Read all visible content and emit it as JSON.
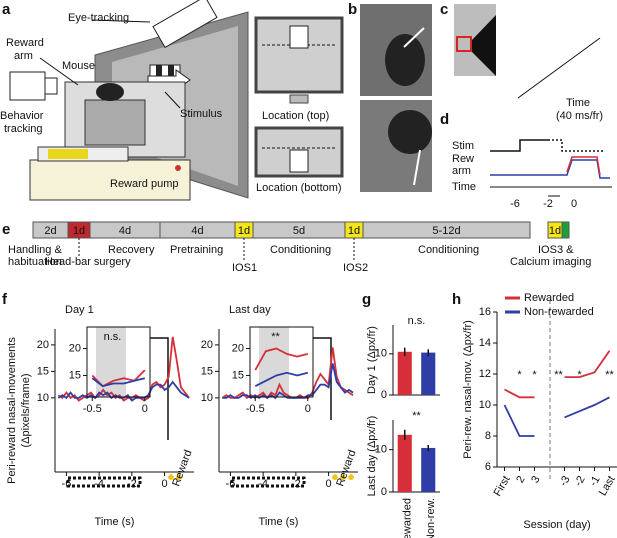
{
  "figure": {
    "panel_labels": [
      "a",
      "b",
      "c",
      "d",
      "e",
      "f",
      "g",
      "h"
    ],
    "a": {
      "eye_tracking": "Eye-tracking",
      "reward_arm": [
        "Reward",
        "arm"
      ],
      "mouse": "Mouse",
      "behavior_tracking": [
        "Behavior",
        "tracking"
      ],
      "stimulus": "Stimulus",
      "reward_pump": "Reward pump",
      "location_top": "Location (top)",
      "location_bottom": "Location (bottom)"
    },
    "c": {
      "time": "Time",
      "rate": "(40 ms/fr)"
    },
    "d": {
      "stim": "Stim",
      "rew_arm": [
        "Rew",
        "arm"
      ],
      "time": "Time",
      "ticks": [
        "-6",
        "-2",
        "0"
      ]
    },
    "e": {
      "segments": [
        {
          "label": "2d",
          "color": "#c8c8c8"
        },
        {
          "label": "1d",
          "color": "#c0282f"
        },
        {
          "label": "4d",
          "color": "#c8c8c8"
        },
        {
          "label": "4d",
          "color": "#c8c8c8"
        },
        {
          "label": "1d",
          "color": "#f5e61a"
        },
        {
          "label": "5d",
          "color": "#c8c8c8"
        },
        {
          "label": "1d",
          "color": "#f5e61a"
        },
        {
          "label": "5-12d",
          "color": "#c8c8c8"
        },
        {
          "label": "1d",
          "color": "#f5e61a"
        }
      ],
      "labels": [
        [
          "Handling &",
          "habituation"
        ],
        [
          "Head-bar surgery"
        ],
        [
          "Recovery"
        ],
        [
          "Pretraining"
        ],
        [
          "IOS1"
        ],
        [
          "Conditioning"
        ],
        [
          "IOS2"
        ],
        [
          "Conditioning"
        ],
        [
          "IOS3 &",
          "Calcium imaging"
        ]
      ]
    }
  },
  "chart_data": [
    {
      "type": "line",
      "title": "Day 1",
      "ylabel": [
        "Peri-reward nasal-movements",
        "(Δpixels/frame)"
      ],
      "xlabel": "Time (s)",
      "annotation": "Reward",
      "x": [
        -6.5,
        -6.25,
        -6,
        -5.75,
        -5.5,
        -5.25,
        -5,
        -4.75,
        -4.5,
        -4.25,
        -4,
        -3.75,
        -3.5,
        -3.25,
        -3,
        -2.75,
        -2.5,
        -2.25,
        -2,
        -1.75,
        -1.5,
        -1.25,
        -1,
        -0.75,
        -0.5,
        -0.25,
        0,
        0.25,
        0.5,
        0.75,
        1,
        1.25,
        1.5
      ],
      "series": [
        {
          "color": "#d62f3a",
          "values": [
            10.5,
            10,
            11,
            10,
            10.5,
            9.5,
            10,
            10.5,
            11,
            10,
            10.5,
            11.5,
            10.5,
            11,
            10,
            10.5,
            9.5,
            10,
            10,
            10.5,
            10,
            9.5,
            10,
            12.5,
            13,
            12,
            12.5,
            14,
            21.5,
            17,
            12,
            11,
            10
          ]
        },
        {
          "color": "#2e3ea6",
          "values": [
            10,
            10.5,
            10,
            11,
            10,
            10,
            10.5,
            10,
            10.5,
            10,
            11,
            10.5,
            11,
            10,
            10.5,
            10,
            10,
            10.5,
            9.5,
            10,
            10,
            10,
            10.5,
            12,
            12.5,
            12.5,
            11.5,
            12,
            13,
            12,
            11,
            10.5,
            10
          ]
        }
      ],
      "xlim": [
        -6.7,
        1.8
      ],
      "ylim": [
        -4,
        23
      ],
      "xticks": [
        -6,
        -4,
        -2,
        0
      ],
      "yticks": [
        10,
        15,
        20
      ]
    },
    {
      "type": "line",
      "annotation": "n.s.",
      "x": [
        -0.5,
        -0.4,
        -0.3,
        -0.2,
        -0.1,
        0
      ],
      "series": [
        {
          "color": "#d62f3a",
          "values": [
            15,
            13,
            14,
            14.5,
            14,
            16
          ]
        },
        {
          "color": "#2e3ea6",
          "values": [
            14.5,
            13,
            13.5,
            13.5,
            14,
            14.5
          ]
        }
      ],
      "xlim": [
        -0.55,
        0.05
      ],
      "ylim": [
        11,
        24
      ],
      "xticks": [
        -0.5,
        0
      ],
      "yticks": [
        15,
        20
      ]
    },
    {
      "type": "line",
      "title": "Last day",
      "xlabel": "Time (s)",
      "annotation": "Reward",
      "x": [
        -6.5,
        -6.25,
        -6,
        -5.75,
        -5.5,
        -5.25,
        -5,
        -4.75,
        -4.5,
        -4.25,
        -4,
        -3.75,
        -3.5,
        -3.25,
        -3,
        -2.75,
        -2.5,
        -2.25,
        -2,
        -1.75,
        -1.5,
        -1.25,
        -1,
        -0.75,
        -0.5,
        -0.25,
        0,
        0.25,
        0.5,
        0.75,
        1,
        1.25,
        1.5
      ],
      "series": [
        {
          "color": "#d62f3a",
          "values": [
            10,
            10.5,
            10,
            10,
            10.5,
            11,
            10,
            10.5,
            10,
            10.5,
            11,
            10,
            11,
            10.5,
            12.5,
            11,
            10.5,
            10,
            10,
            10.5,
            10,
            10,
            11,
            13,
            14.5,
            13.5,
            12.5,
            19.5,
            14,
            12,
            11.5,
            11,
            10.5
          ]
        },
        {
          "color": "#2e3ea6",
          "values": [
            10,
            10,
            10.5,
            10,
            10,
            10.5,
            10.5,
            10,
            10.5,
            10,
            10.5,
            10,
            10.5,
            10,
            11,
            10.5,
            10,
            10,
            10,
            10,
            10,
            10.5,
            10.5,
            11.5,
            12.5,
            12.5,
            12,
            16.5,
            13,
            12,
            11,
            11.5,
            11
          ]
        }
      ],
      "xlim": [
        -6.7,
        1.8
      ],
      "ylim": [
        -4,
        23
      ],
      "xticks": [
        -6,
        -4,
        -2,
        0
      ],
      "yticks": [
        10,
        15,
        20
      ]
    },
    {
      "type": "line",
      "annotation": "**",
      "x": [
        -0.5,
        -0.4,
        -0.3,
        -0.2,
        -0.1,
        0
      ],
      "series": [
        {
          "color": "#d62f3a",
          "values": [
            16,
            19.5,
            20,
            19,
            18.5,
            19
          ]
        },
        {
          "color": "#2e3ea6",
          "values": [
            13,
            14,
            15,
            15.5,
            15,
            15.5
          ]
        }
      ],
      "xlim": [
        -0.55,
        0.05
      ],
      "ylim": [
        11,
        24
      ],
      "xticks": [
        -0.5,
        0
      ],
      "yticks": [
        15,
        20
      ]
    },
    {
      "type": "bar",
      "ylabel": "Day 1 (Δpx/fr)",
      "annotation": "n.s.",
      "categories": [
        null,
        null
      ],
      "values": [
        10.5,
        10.3
      ],
      "errors": [
        1,
        0.8
      ],
      "colors": [
        "#d62f3a",
        "#2e3ea6"
      ],
      "ylim": [
        0,
        17
      ],
      "yticks": [
        0,
        10
      ]
    },
    {
      "type": "bar",
      "ylabel": "Last day (Δpx/fr)",
      "annotation": "**",
      "categories": [
        "Rewarded",
        "Non-rew."
      ],
      "values": [
        13.5,
        10.4
      ],
      "errors": [
        1.2,
        0.7
      ],
      "colors": [
        "#d62f3a",
        "#2e3ea6"
      ],
      "ylim": [
        0,
        17
      ],
      "yticks": [
        0,
        10
      ]
    },
    {
      "type": "line",
      "ylabel": "Peri-rew. nasal-mov. (Δpx/fr)",
      "xlabel": "Session (day)",
      "categories": [
        "First",
        "2",
        "3",
        null,
        "-3",
        "-2",
        "-1",
        "Last"
      ],
      "series": [
        {
          "name": "Rewarded",
          "color": "#d62f3a",
          "values": [
            11,
            10.5,
            10.5,
            null,
            11.8,
            11.8,
            12.1,
            13.5
          ]
        },
        {
          "name": "Non-rewarded",
          "color": "#2e3ea6",
          "values": [
            10,
            8,
            8,
            null,
            9.2,
            9.6,
            10,
            10.5
          ]
        }
      ],
      "annotations": [
        "*",
        "*",
        "**",
        "*",
        "**"
      ],
      "ylim": [
        6,
        16
      ],
      "yticks": [
        6,
        8,
        10,
        12,
        14,
        16
      ]
    }
  ]
}
